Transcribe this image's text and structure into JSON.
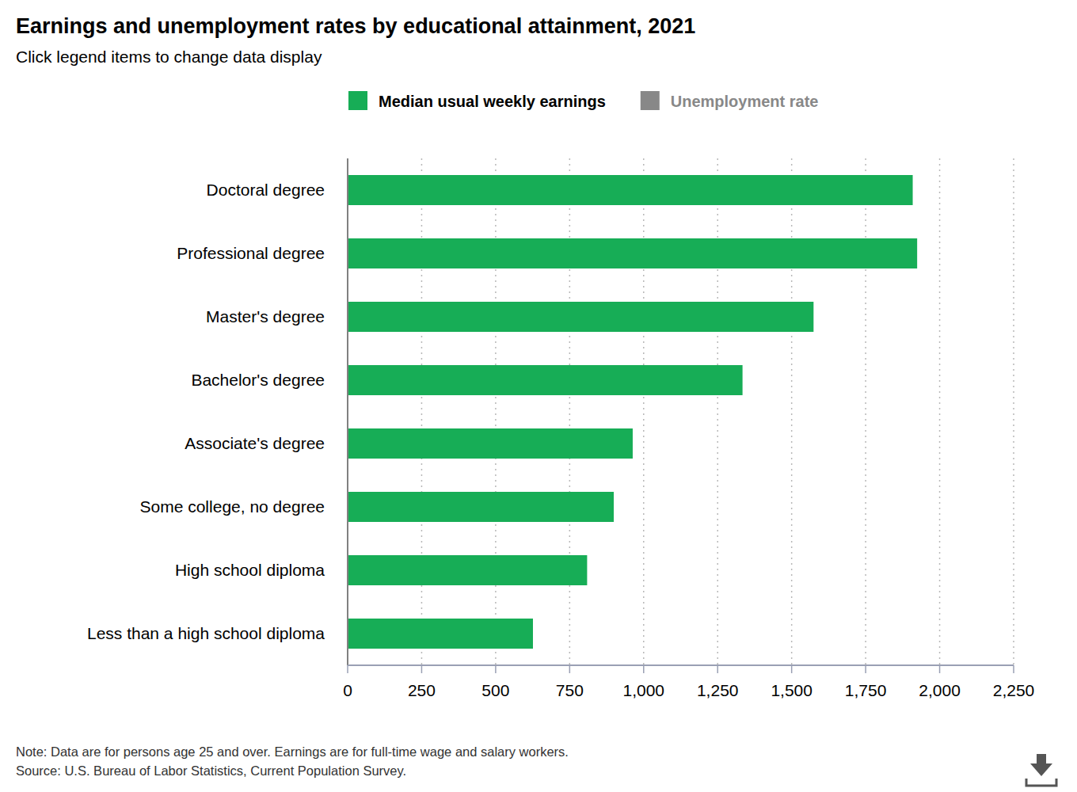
{
  "chart_data": {
    "type": "bar",
    "orientation": "horizontal",
    "title": "Earnings and unemployment rates by educational attainment, 2021",
    "subtitle": "Click legend items to change data display",
    "categories": [
      "Doctoral degree",
      "Professional degree",
      "Master's degree",
      "Bachelor's degree",
      "Associate's degree",
      "Some college, no degree",
      "High school diploma",
      "Less than a high school diploma"
    ],
    "series": [
      {
        "name": "Median usual weekly earnings",
        "color": "#17ad56",
        "values": [
          1909,
          1924,
          1574,
          1334,
          963,
          899,
          809,
          626
        ]
      },
      {
        "name": "Unemployment rate",
        "color": "#888888",
        "values": [
          null,
          null,
          null,
          null,
          null,
          null,
          null,
          null
        ]
      }
    ],
    "xlim": [
      0,
      2250
    ],
    "xticks": [
      0,
      250,
      500,
      750,
      {
        "value": 1000,
        "label": "1,000"
      },
      {
        "value": 1250,
        "label": "1,250"
      },
      {
        "value": 1500,
        "label": "1,500"
      },
      {
        "value": 1750,
        "label": "1,750"
      },
      {
        "value": 2000,
        "label": "2,000"
      },
      {
        "value": 2250,
        "label": "2,250"
      }
    ],
    "grid": true,
    "note": "Note: Data are for persons age 25 and over. Earnings are for full-time wage and salary workers.",
    "source": "Source: U.S. Bureau of Labor Statistics, Current Population Survey."
  }
}
